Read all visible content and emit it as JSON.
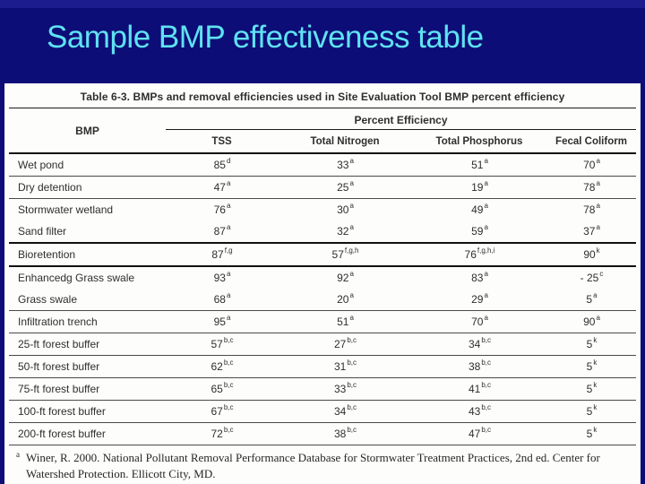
{
  "slide": {
    "title": "Sample BMP effectiveness table"
  },
  "colors": {
    "background": "#0d0d77",
    "title_text": "#5fe2f2",
    "panel": "#fdfdfb",
    "table_text": "#2e2e2e"
  },
  "chart_data": {
    "type": "table",
    "title": "Table 6-3.  BMPs and removal efficiencies used in Site Evaluation Tool BMP percent efficiency",
    "group_header": "Percent Efficiency",
    "columns": [
      "BMP",
      "TSS",
      "Total Nitrogen",
      "Total Phosphorus",
      "Fecal Coliform"
    ],
    "rows": [
      [
        "Wet pond",
        "85 d",
        "33 a",
        "51 a",
        "70 a"
      ],
      [
        "Dry detention",
        "47 a",
        "25 a",
        "19 a",
        "78 a"
      ],
      [
        "Stormwater wetland",
        "76 a",
        "30 a",
        "49 a",
        "78 a"
      ],
      [
        "Sand filter",
        "87 a",
        "32 a",
        "59 a",
        "37 a"
      ],
      [
        "Bioretention",
        "87 f,g",
        "57 f,g,h",
        "76 f,g,h,i",
        "90 k"
      ],
      [
        "Enhancedg Grass swale",
        "93 a",
        "92 a",
        "83 a",
        "-25 c"
      ],
      [
        "Grass swale",
        "68 a",
        "20 a",
        "29 a",
        "5 a"
      ],
      [
        "Infiltration trench",
        "95 a",
        "51 a",
        "70 a",
        "90 a"
      ],
      [
        "25-ft forest buffer",
        "57 b,c",
        "27 b,c",
        "34 b,c",
        "5 k"
      ],
      [
        "50-ft forest buffer",
        "62 b,c",
        "31 b,c",
        "38 b,c",
        "5 k"
      ],
      [
        "75-ft forest buffer",
        "65 b,c",
        "33 b,c",
        "41 b,c",
        "5 k"
      ],
      [
        "100-ft forest buffer",
        "67 b,c",
        "34 b,c",
        "43 b,c",
        "5 k"
      ],
      [
        "200-ft forest buffer",
        "72 b,c",
        "38 b,c",
        "47 b,c",
        "5 k"
      ]
    ]
  },
  "table": {
    "caption": "Table 6-3.  BMPs and removal efficiencies used in Site Evaluation Tool BMP percent efficiency",
    "group_header": "Percent Efficiency",
    "bmp_header": "BMP",
    "columns": [
      "TSS",
      "Total Nitrogen",
      "Total Phosphorus",
      "Fecal Coliform"
    ],
    "rows": [
      {
        "bmp": "Wet pond",
        "cells": [
          {
            "v": "85",
            "s": "d"
          },
          {
            "v": "33",
            "s": "a"
          },
          {
            "v": "51",
            "s": "a"
          },
          {
            "v": "70",
            "s": "a"
          }
        ]
      },
      {
        "bmp": "Dry detention",
        "cells": [
          {
            "v": "47",
            "s": "a"
          },
          {
            "v": "25",
            "s": "a"
          },
          {
            "v": "19",
            "s": "a"
          },
          {
            "v": "78",
            "s": "a"
          }
        ]
      },
      {
        "bmp": "Stormwater wetland",
        "cells": [
          {
            "v": "76",
            "s": "a"
          },
          {
            "v": "30",
            "s": "a"
          },
          {
            "v": "49",
            "s": "a"
          },
          {
            "v": "78",
            "s": "a"
          }
        ]
      },
      {
        "bmp": "Sand filter",
        "cells": [
          {
            "v": "87",
            "s": "a"
          },
          {
            "v": "32",
            "s": "a"
          },
          {
            "v": "59",
            "s": "a"
          },
          {
            "v": "37",
            "s": "a"
          }
        ]
      },
      {
        "bmp": "Bioretention",
        "cells": [
          {
            "v": "87",
            "s": "f,g"
          },
          {
            "v": "57",
            "s": "f,g,h"
          },
          {
            "v": "76",
            "s": "f,g,h,i"
          },
          {
            "v": "90",
            "s": "k"
          }
        ]
      },
      {
        "bmp": "Enhancedg Grass swale",
        "cells": [
          {
            "v": "93",
            "s": "a"
          },
          {
            "v": "92",
            "s": "a"
          },
          {
            "v": "83",
            "s": "a"
          },
          {
            "v": "- 25",
            "s": "c"
          }
        ]
      },
      {
        "bmp": "Grass swale",
        "cells": [
          {
            "v": "68",
            "s": "a"
          },
          {
            "v": "20",
            "s": "a"
          },
          {
            "v": "29",
            "s": "a"
          },
          {
            "v": "5",
            "s": "a"
          }
        ]
      },
      {
        "bmp": "Infiltration trench",
        "cells": [
          {
            "v": "95",
            "s": "a"
          },
          {
            "v": "51",
            "s": "a"
          },
          {
            "v": "70",
            "s": "a"
          },
          {
            "v": "90",
            "s": "a"
          }
        ]
      },
      {
        "bmp": "25-ft forest buffer",
        "cells": [
          {
            "v": "57",
            "s": "b,c"
          },
          {
            "v": "27",
            "s": "b,c"
          },
          {
            "v": "34",
            "s": "b,c"
          },
          {
            "v": "5",
            "s": "k"
          }
        ]
      },
      {
        "bmp": "50-ft forest buffer",
        "cells": [
          {
            "v": "62",
            "s": "b,c"
          },
          {
            "v": "31",
            "s": "b,c"
          },
          {
            "v": "38",
            "s": "b,c"
          },
          {
            "v": "5",
            "s": "k"
          }
        ]
      },
      {
        "bmp": "75-ft forest buffer",
        "cells": [
          {
            "v": "65",
            "s": "b,c"
          },
          {
            "v": "33",
            "s": "b,c"
          },
          {
            "v": "41",
            "s": "b,c"
          },
          {
            "v": "5",
            "s": "k"
          }
        ]
      },
      {
        "bmp": "100-ft forest buffer",
        "cells": [
          {
            "v": "67",
            "s": "b,c"
          },
          {
            "v": "34",
            "s": "b,c"
          },
          {
            "v": "43",
            "s": "b,c"
          },
          {
            "v": "5",
            "s": "k"
          }
        ]
      },
      {
        "bmp": "200-ft forest buffer",
        "cells": [
          {
            "v": "72",
            "s": "b,c"
          },
          {
            "v": "38",
            "s": "b,c"
          },
          {
            "v": "47",
            "s": "b,c"
          },
          {
            "v": "5",
            "s": "k"
          }
        ]
      }
    ],
    "footnote": {
      "marker": "a",
      "lines": [
        "Winer, R. 2000. National Pollutant Removal Performance Database for Stormwater Treatment Practices, 2nd ed. Center for",
        "Watershed Protection.  Ellicott City, MD."
      ]
    }
  }
}
